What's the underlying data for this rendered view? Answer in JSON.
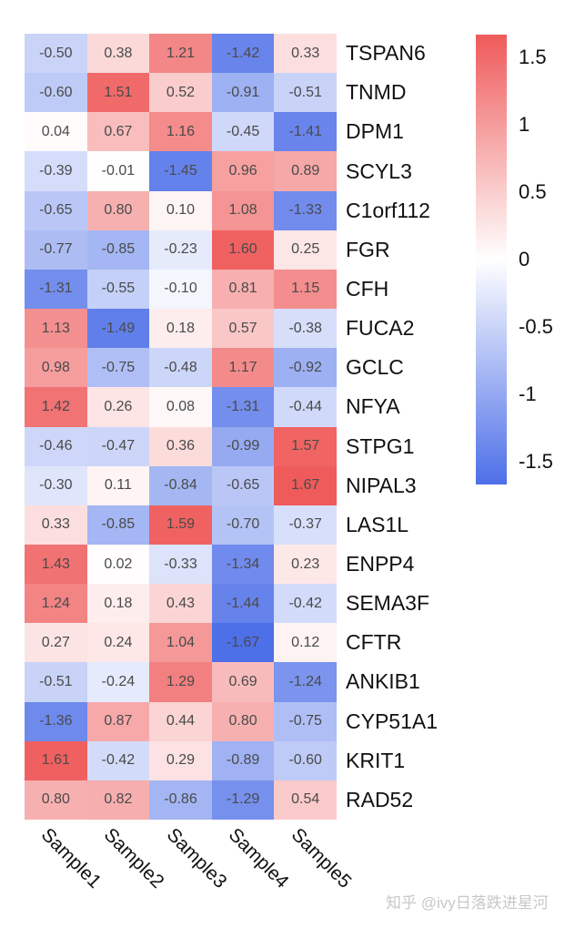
{
  "chart_data": {
    "type": "heatmap",
    "title": "",
    "xlabel": "",
    "ylabel": "",
    "columns": [
      "Sample1",
      "Sample2",
      "Sample3",
      "Sample4",
      "Sample5"
    ],
    "rows": [
      "TSPAN6",
      "TNMD",
      "DPM1",
      "SCYL3",
      "C1orf112",
      "FGR",
      "CFH",
      "FUCA2",
      "GCLC",
      "NFYA",
      "STPG1",
      "NIPAL3",
      "LAS1L",
      "ENPP4",
      "SEMA3F",
      "CFTR",
      "ANKIB1",
      "CYP51A1",
      "KRIT1",
      "RAD52"
    ],
    "values": [
      [
        -0.5,
        0.38,
        1.21,
        -1.42,
        0.33
      ],
      [
        -0.6,
        1.51,
        0.52,
        -0.91,
        -0.51
      ],
      [
        0.04,
        0.67,
        1.16,
        -0.45,
        -1.41
      ],
      [
        -0.39,
        -0.01,
        -1.45,
        0.96,
        0.89
      ],
      [
        -0.65,
        0.8,
        0.1,
        1.08,
        -1.33
      ],
      [
        -0.77,
        -0.85,
        -0.23,
        1.6,
        0.25
      ],
      [
        -1.31,
        -0.55,
        -0.1,
        0.81,
        1.15
      ],
      [
        1.13,
        -1.49,
        0.18,
        0.57,
        -0.38
      ],
      [
        0.98,
        -0.75,
        -0.48,
        1.17,
        -0.92
      ],
      [
        1.42,
        0.26,
        0.08,
        -1.31,
        -0.44
      ],
      [
        -0.46,
        -0.47,
        0.36,
        -0.99,
        1.57
      ],
      [
        -0.3,
        0.11,
        -0.84,
        -0.65,
        1.67
      ],
      [
        0.33,
        -0.85,
        1.59,
        -0.7,
        -0.37
      ],
      [
        1.43,
        0.02,
        -0.33,
        -1.34,
        0.23
      ],
      [
        1.24,
        0.18,
        0.43,
        -1.44,
        -0.42
      ],
      [
        0.27,
        0.24,
        1.04,
        -1.67,
        0.12
      ],
      [
        -0.51,
        -0.24,
        1.29,
        0.69,
        -1.24
      ],
      [
        -1.36,
        0.87,
        0.44,
        0.8,
        -0.75
      ],
      [
        1.61,
        -0.42,
        0.29,
        -0.89,
        -0.6
      ],
      [
        0.8,
        0.82,
        -0.86,
        -1.29,
        0.54
      ]
    ],
    "legend": {
      "position": "right",
      "range": [
        -1.67,
        1.67
      ],
      "ticks": [
        1.5,
        1,
        0.5,
        0,
        -0.5,
        -1,
        -1.5
      ],
      "tick_labels": [
        "1.5",
        "1",
        "0.5",
        "0",
        "-0.5",
        "-1",
        "-1.5"
      ],
      "low_color": "#4d6fe8",
      "mid_color": "#ffffff",
      "high_color": "#ef5a5a"
    },
    "cell_labels_shown": true,
    "grid": false
  },
  "watermark": "知乎 @ivy日落跌进星河"
}
